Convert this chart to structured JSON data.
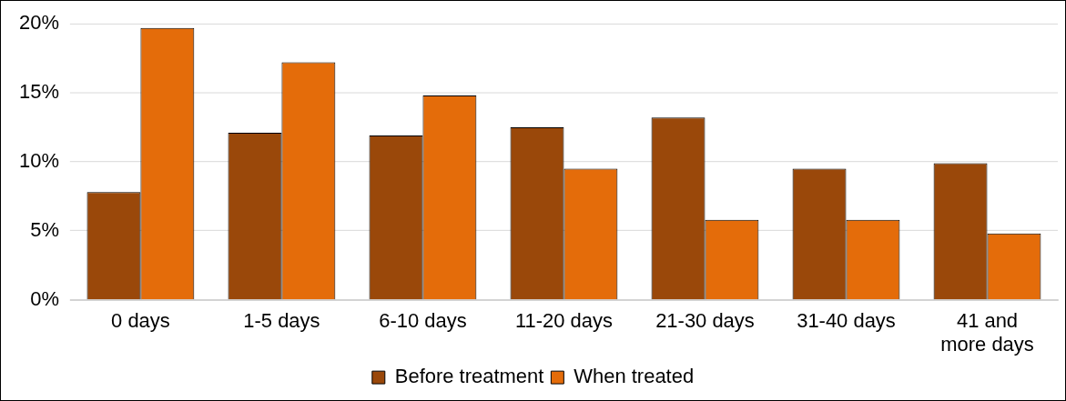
{
  "chart_data": {
    "type": "bar",
    "categories": [
      "0 days",
      "1-5 days",
      "6-10 days",
      "11-20 days",
      "21-30 days",
      "31-40 days",
      "41 and more days"
    ],
    "series": [
      {
        "name": "Before treatment",
        "color": "#9a480a",
        "values": [
          7.8,
          12.1,
          11.9,
          12.5,
          13.2,
          9.5,
          9.9
        ]
      },
      {
        "name": "When treated",
        "color": "#e46c0a",
        "values": [
          19.7,
          17.2,
          14.8,
          9.5,
          5.8,
          5.8,
          4.8
        ]
      }
    ],
    "ylim": [
      0,
      20
    ],
    "yticks": [
      {
        "value": 0,
        "label": "0%"
      },
      {
        "value": 5,
        "label": "5%"
      },
      {
        "value": 10,
        "label": "10%"
      },
      {
        "value": 15,
        "label": "15%"
      },
      {
        "value": 20,
        "label": "20%"
      }
    ],
    "grid": "y",
    "legend": "bottom"
  }
}
